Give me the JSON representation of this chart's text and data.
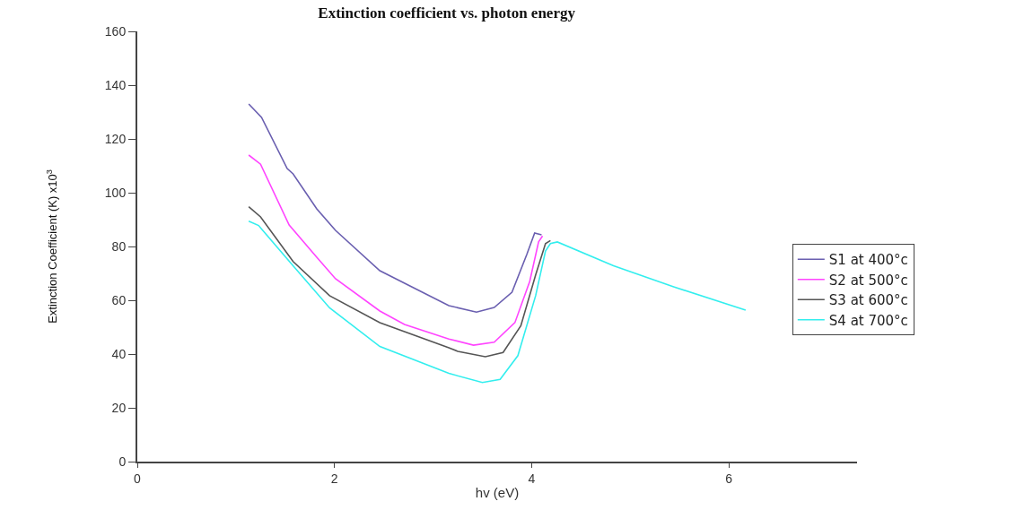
{
  "chart_data": {
    "type": "line",
    "title": "Extinction coefficient vs. photon energy",
    "xlabel": "hv (eV)",
    "ylabel": "Extinction Coefficient (K) x10$^{3}$",
    "xlim": [
      0,
      7.3
    ],
    "xticks": [
      0,
      2,
      4,
      6
    ],
    "ylim": [
      0,
      160
    ],
    "yticks": [
      0,
      20,
      40,
      60,
      80,
      100,
      120,
      140,
      160
    ],
    "grid": false,
    "legend": "right",
    "marker": "none",
    "line_style": "solid",
    "series": [
      {
        "name": "S1 at 400°c",
        "color": "#6a5fb0",
        "x": [
          1.13,
          1.26,
          1.52,
          1.58,
          1.82,
          2.01,
          2.46,
          3.16,
          3.44,
          3.62,
          3.8,
          3.95,
          4.03,
          4.1
        ],
        "values": [
          133,
          128,
          109,
          107,
          94,
          86,
          71,
          58,
          55.6,
          57.3,
          63,
          77,
          85,
          84.3
        ]
      },
      {
        "name": "S2 at 500°c",
        "color": "#ff44ff",
        "x": [
          1.13,
          1.25,
          1.54,
          1.82,
          2.01,
          2.46,
          2.71,
          3.16,
          3.41,
          3.62,
          3.83,
          3.98,
          4.07,
          4.11
        ],
        "values": [
          114,
          110.6,
          88,
          76,
          68,
          56,
          51,
          45.6,
          43.3,
          44.4,
          51.7,
          67,
          81.7,
          83.9
        ]
      },
      {
        "name": "S3 at 600°c",
        "color": "#555555",
        "x": [
          1.13,
          1.25,
          1.58,
          1.95,
          2.46,
          3.16,
          3.25,
          3.53,
          3.71,
          3.89,
          4.04,
          4.14,
          4.19
        ],
        "values": [
          94.8,
          91,
          74.4,
          61.7,
          51.7,
          42.3,
          41,
          39,
          40.6,
          50.5,
          69.4,
          81.1,
          82.2
        ]
      },
      {
        "name": "S4 at 700°c",
        "color": "#33eeee",
        "x": [
          1.13,
          1.23,
          1.58,
          1.95,
          2.46,
          3.16,
          3.5,
          3.68,
          3.86,
          4.04,
          4.14,
          4.19,
          4.26,
          4.83,
          5.44,
          6.17
        ],
        "values": [
          89.4,
          87.8,
          72.8,
          57.2,
          42.8,
          32.8,
          29.4,
          30.6,
          39.4,
          61.7,
          78.3,
          81.1,
          81.7,
          72.8,
          65,
          56.3
        ]
      }
    ]
  }
}
